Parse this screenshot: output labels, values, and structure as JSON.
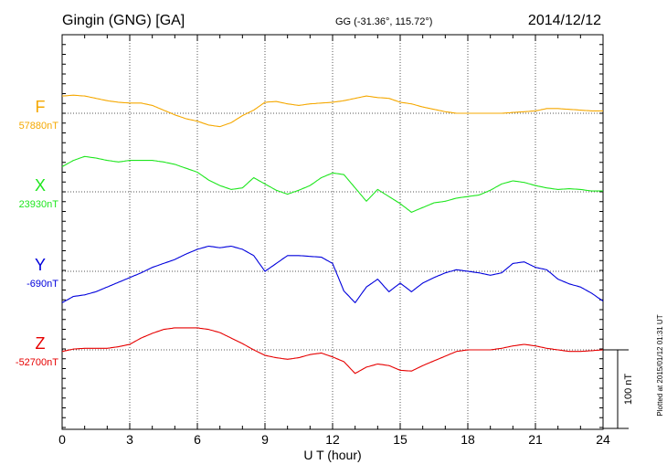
{
  "header": {
    "station": "Gingin (GNG)  [GA]",
    "coords": "GG (-31.36°, 115.72°)",
    "date": "2014/12/12"
  },
  "footnote": "Plotted at 2015/01/12 01:31 UT",
  "chart_data": {
    "type": "line",
    "title": "Gingin (GNG)  [GA]",
    "xlabel": "U T (hour)",
    "xlim": [
      0,
      24
    ],
    "xticks": [
      0,
      3,
      6,
      9,
      12,
      15,
      18,
      21,
      24
    ],
    "xtick_labels": [
      "0",
      "3",
      "6",
      "9",
      "12",
      "15",
      "18",
      "21",
      "24"
    ],
    "scale_bar": {
      "label": "100 nT",
      "nT": 100
    },
    "grid": true,
    "series": [
      {
        "name": "F",
        "baseline_label": "57880nT",
        "baseline_nT": 57880,
        "color": "#f5a800",
        "x": [
          0,
          0.5,
          1,
          1.5,
          2,
          2.5,
          3,
          3.5,
          4,
          4.5,
          5,
          5.5,
          6,
          6.5,
          7,
          7.5,
          8,
          8.5,
          9,
          9.5,
          10,
          10.5,
          11,
          11.5,
          12,
          12.5,
          13,
          13.5,
          14,
          14.5,
          15,
          15.5,
          16,
          16.5,
          17,
          17.5,
          18,
          18.5,
          19,
          19.5,
          20,
          20.5,
          21,
          21.5,
          22,
          22.5,
          23,
          23.5,
          24
        ],
        "y": [
          22,
          23,
          22,
          19,
          16,
          14,
          13,
          13,
          10,
          4,
          -2,
          -7,
          -10,
          -15,
          -17,
          -12,
          -3,
          4,
          14,
          15,
          12,
          10,
          12,
          13,
          14,
          16,
          19,
          22,
          20,
          19,
          14,
          12,
          8,
          5,
          2,
          0,
          0,
          0,
          0,
          0,
          1,
          2,
          3,
          6,
          6,
          5,
          4,
          3,
          3
        ]
      },
      {
        "name": "X",
        "baseline_label": "23930nT",
        "baseline_nT": 23930,
        "color": "#1ee61e",
        "x": [
          0,
          0.5,
          1,
          1.5,
          2,
          2.5,
          3,
          3.5,
          4,
          4.5,
          5,
          5.5,
          6,
          6.5,
          7,
          7.5,
          8,
          8.5,
          9,
          9.5,
          10,
          10.5,
          11,
          11.5,
          12,
          12.5,
          13,
          13.5,
          14,
          14.5,
          15,
          15.5,
          16,
          16.5,
          17,
          17.5,
          18,
          18.5,
          19,
          19.5,
          20,
          20.5,
          21,
          21.5,
          22,
          22.5,
          23,
          23.5,
          24
        ],
        "y": [
          32,
          40,
          45,
          43,
          40,
          38,
          40,
          40,
          40,
          38,
          35,
          30,
          25,
          15,
          8,
          3,
          5,
          18,
          10,
          2,
          -3,
          2,
          8,
          18,
          24,
          22,
          5,
          -12,
          3,
          -6,
          -15,
          -26,
          -20,
          -14,
          -12,
          -8,
          -6,
          -4,
          2,
          10,
          14,
          12,
          8,
          5,
          3,
          4,
          3,
          1,
          1
        ]
      },
      {
        "name": "Y",
        "baseline_label": "-690nT",
        "baseline_nT": -690,
        "color": "#0000dc",
        "x": [
          0,
          0.5,
          1,
          1.5,
          2,
          2.5,
          3,
          3.5,
          4,
          4.5,
          5,
          5.5,
          6,
          6.5,
          7,
          7.5,
          8,
          8.5,
          9,
          9.5,
          10,
          10.5,
          11,
          11.5,
          12,
          12.5,
          13,
          13.5,
          14,
          14.5,
          15,
          15.5,
          16,
          16.5,
          17,
          17.5,
          18,
          18.5,
          19,
          19.5,
          20,
          20.5,
          21,
          21.5,
          22,
          22.5,
          23,
          23.5,
          24
        ],
        "y": [
          -40,
          -32,
          -30,
          -26,
          -20,
          -14,
          -8,
          -2,
          5,
          10,
          15,
          22,
          28,
          32,
          30,
          32,
          28,
          20,
          0,
          10,
          20,
          20,
          19,
          18,
          10,
          -25,
          -40,
          -20,
          -10,
          -26,
          -15,
          -26,
          -15,
          -8,
          -2,
          2,
          0,
          -2,
          -5,
          -2,
          10,
          12,
          5,
          2,
          -10,
          -16,
          -20,
          -28,
          -38
        ]
      },
      {
        "name": "Z",
        "baseline_label": "-52700nT",
        "baseline_nT": -52700,
        "color": "#e60000",
        "x": [
          0,
          0.5,
          1,
          1.5,
          2,
          2.5,
          3,
          3.5,
          4,
          4.5,
          5,
          5.5,
          6,
          6.5,
          7,
          7.5,
          8,
          8.5,
          9,
          9.5,
          10,
          10.5,
          11,
          11.5,
          12,
          12.5,
          13,
          13.5,
          14,
          14.5,
          15,
          15.5,
          16,
          16.5,
          17,
          17.5,
          18,
          18.5,
          19,
          19.5,
          20,
          20.5,
          21,
          21.5,
          22,
          22.5,
          23,
          23.5,
          24
        ],
        "y": [
          -2,
          1,
          2,
          2,
          2,
          4,
          7,
          15,
          21,
          26,
          28,
          28,
          28,
          26,
          22,
          15,
          8,
          0,
          -7,
          -10,
          -12,
          -10,
          -6,
          -4,
          -9,
          -15,
          -30,
          -22,
          -18,
          -20,
          -26,
          -27,
          -20,
          -14,
          -8,
          -2,
          0,
          0,
          0,
          2,
          5,
          7,
          5,
          2,
          0,
          -2,
          -2,
          -1,
          0
        ]
      }
    ]
  }
}
